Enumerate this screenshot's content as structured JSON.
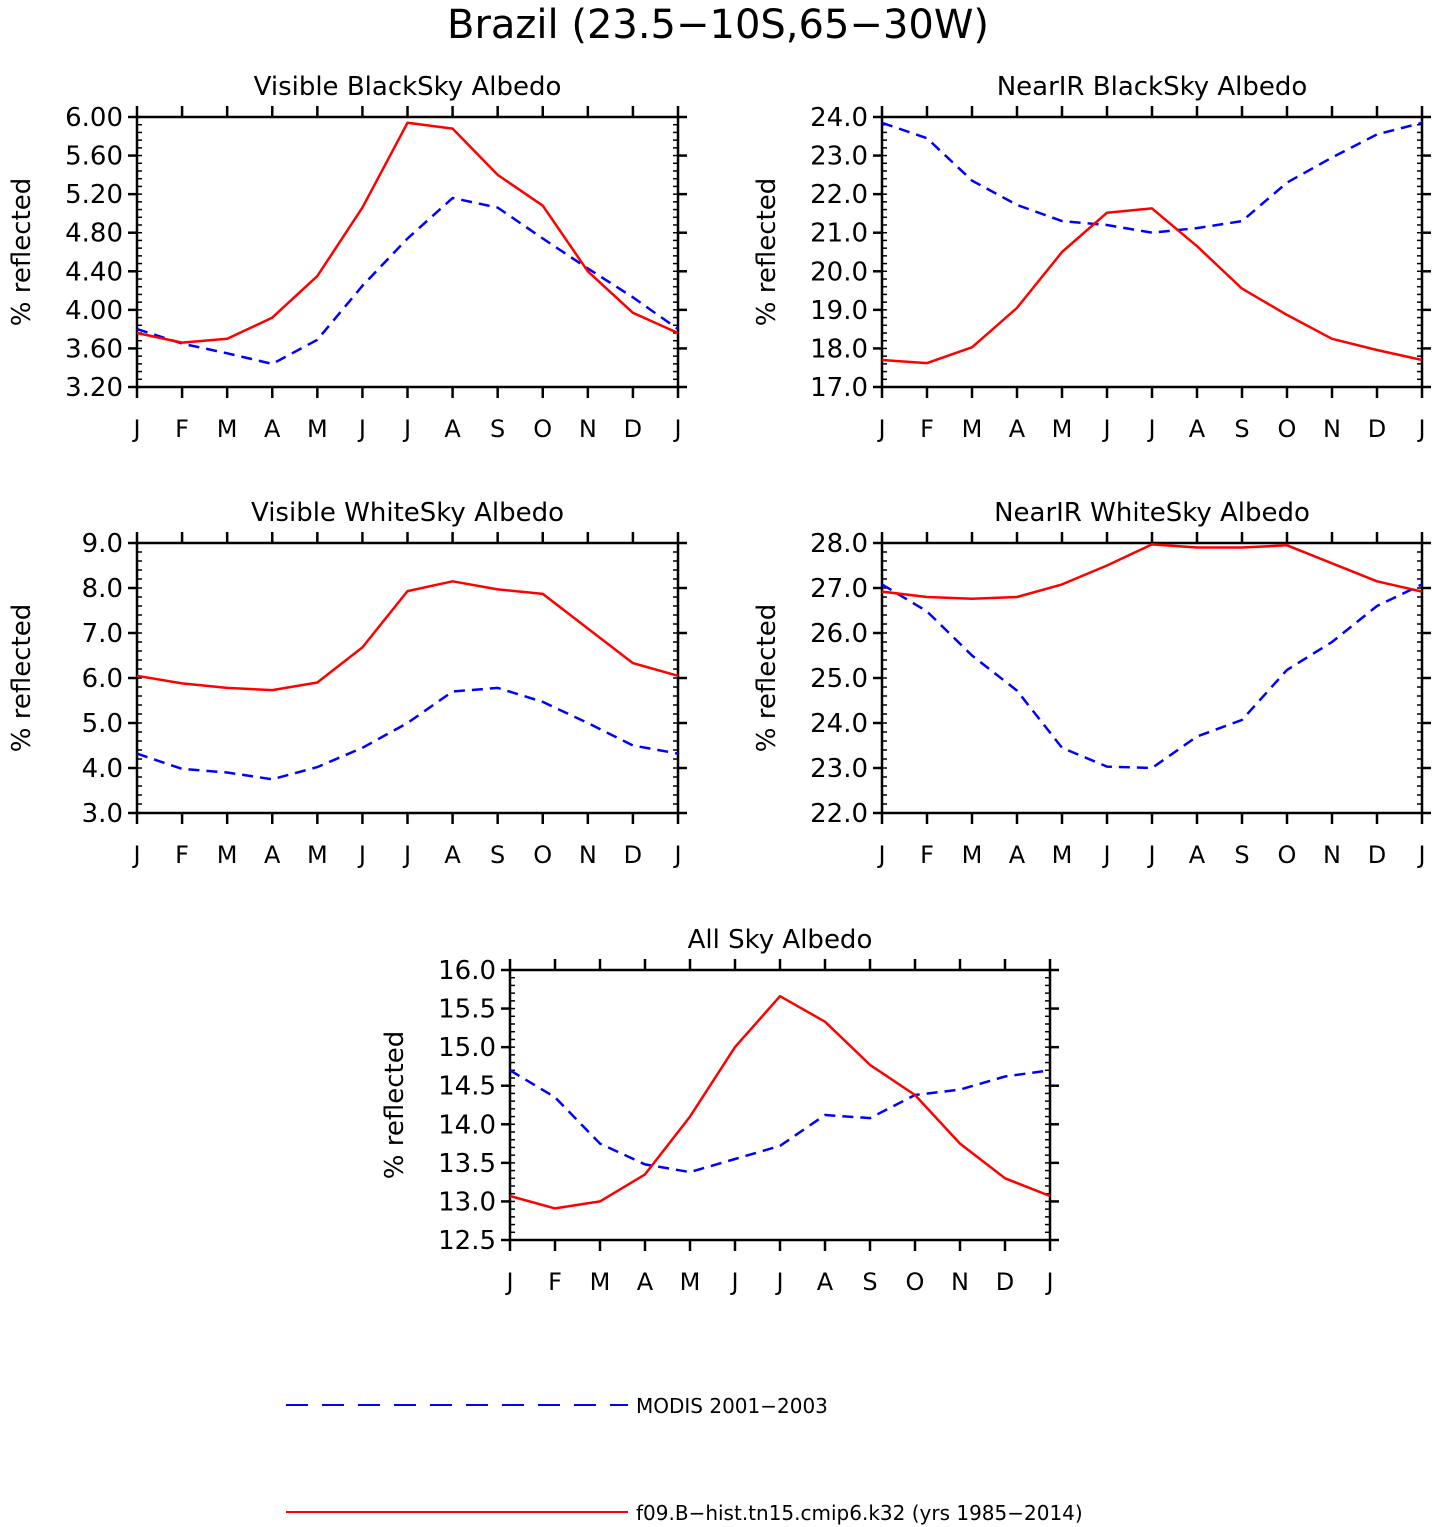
{
  "title": "Brazil (23.5−10S,65−30W)",
  "months": [
    "J",
    "F",
    "M",
    "A",
    "M",
    "J",
    "J",
    "A",
    "S",
    "O",
    "N",
    "D",
    "J"
  ],
  "legend": {
    "modis": "MODIS 2001−2003",
    "model": "f09.B−hist.tn15.cmip6.k32 (yrs 1985−2014)"
  },
  "colors": {
    "modis": "#0000ff",
    "model": "#ff0000",
    "axes": "#000000"
  },
  "chart_data": [
    {
      "type": "line",
      "title": "Visible BlackSky Albedo",
      "ylabel": "% reflected",
      "ylim": [
        3.2,
        6.0
      ],
      "yticks": [
        3.2,
        3.6,
        4.0,
        4.4,
        4.8,
        5.2,
        5.6,
        6.0
      ],
      "ytick_labels": [
        "3.20",
        "3.60",
        "4.00",
        "4.40",
        "4.80",
        "5.20",
        "5.60",
        "6.00"
      ],
      "categories": [
        "J",
        "F",
        "M",
        "A",
        "M",
        "J",
        "J",
        "A",
        "S",
        "O",
        "N",
        "D",
        "J"
      ],
      "series": [
        {
          "name": "MODIS 2001−2003",
          "style": "dashed",
          "values": [
            3.8,
            3.65,
            3.55,
            3.44,
            3.69,
            4.25,
            4.74,
            5.16,
            5.06,
            4.74,
            4.43,
            4.13,
            3.8
          ]
        },
        {
          "name": "f09.B−hist.tn15.cmip6.k32 (yrs 1985−2014)",
          "style": "solid",
          "values": [
            3.76,
            3.66,
            3.7,
            3.92,
            4.35,
            5.06,
            5.94,
            5.88,
            5.4,
            5.08,
            4.4,
            3.97,
            3.76
          ]
        }
      ]
    },
    {
      "type": "line",
      "title": "NearIR BlackSky Albedo",
      "ylabel": "% reflected",
      "ylim": [
        17.0,
        24.0
      ],
      "yticks": [
        17,
        18,
        19,
        20,
        21,
        22,
        23,
        24
      ],
      "ytick_labels": [
        "17.0",
        "18.0",
        "19.0",
        "20.0",
        "21.0",
        "22.0",
        "23.0",
        "24.0"
      ],
      "categories": [
        "J",
        "F",
        "M",
        "A",
        "M",
        "J",
        "J",
        "A",
        "S",
        "O",
        "N",
        "D",
        "J"
      ],
      "series": [
        {
          "name": "MODIS 2001−2003",
          "style": "dashed",
          "values": [
            23.85,
            23.45,
            22.35,
            21.72,
            21.3,
            21.2,
            21.0,
            21.12,
            21.3,
            22.3,
            22.95,
            23.55,
            23.85
          ]
        },
        {
          "name": "f09.B−hist.tn15.cmip6.k32 (yrs 1985−2014)",
          "style": "solid",
          "values": [
            17.7,
            17.62,
            18.03,
            19.05,
            20.5,
            21.52,
            21.63,
            20.65,
            19.55,
            18.87,
            18.25,
            17.96,
            17.7
          ]
        }
      ]
    },
    {
      "type": "line",
      "title": "Visible WhiteSky Albedo",
      "ylabel": "% reflected",
      "ylim": [
        3.0,
        9.0
      ],
      "yticks": [
        3,
        4,
        5,
        6,
        7,
        8,
        9
      ],
      "ytick_labels": [
        "3.0",
        "4.0",
        "5.0",
        "6.0",
        "7.0",
        "8.0",
        "9.0"
      ],
      "categories": [
        "J",
        "F",
        "M",
        "A",
        "M",
        "J",
        "J",
        "A",
        "S",
        "O",
        "N",
        "D",
        "J"
      ],
      "series": [
        {
          "name": "MODIS 2001−2003",
          "style": "dashed",
          "values": [
            4.32,
            3.98,
            3.9,
            3.75,
            4.02,
            4.45,
            5.0,
            5.7,
            5.78,
            5.47,
            5.0,
            4.5,
            4.32
          ]
        },
        {
          "name": "f09.B−hist.tn15.cmip6.k32 (yrs 1985−2014)",
          "style": "solid",
          "values": [
            6.05,
            5.88,
            5.78,
            5.73,
            5.9,
            6.68,
            7.93,
            8.15,
            7.97,
            7.87,
            7.1,
            6.33,
            6.05
          ]
        }
      ]
    },
    {
      "type": "line",
      "title": "NearIR WhiteSky Albedo",
      "ylabel": "% reflected",
      "ylim": [
        22.0,
        28.0
      ],
      "yticks": [
        22,
        23,
        24,
        25,
        26,
        27,
        28
      ],
      "ytick_labels": [
        "22.0",
        "23.0",
        "24.0",
        "25.0",
        "26.0",
        "27.0",
        "28.0"
      ],
      "categories": [
        "J",
        "F",
        "M",
        "A",
        "M",
        "J",
        "J",
        "A",
        "S",
        "O",
        "N",
        "D",
        "J"
      ],
      "series": [
        {
          "name": "MODIS 2001−2003",
          "style": "dashed",
          "values": [
            27.08,
            26.48,
            25.5,
            24.72,
            23.45,
            23.03,
            23.0,
            23.7,
            24.07,
            25.18,
            25.8,
            26.6,
            27.08
          ]
        },
        {
          "name": "f09.B−hist.tn15.cmip6.k32 (yrs 1985−2014)",
          "style": "solid",
          "values": [
            26.92,
            26.8,
            26.76,
            26.8,
            27.08,
            27.5,
            27.97,
            27.9,
            27.9,
            27.95,
            27.55,
            27.15,
            26.92
          ]
        }
      ]
    },
    {
      "type": "line",
      "title": "All Sky Albedo",
      "ylabel": "% reflected",
      "ylim": [
        12.5,
        16.0
      ],
      "yticks": [
        12.5,
        13.0,
        13.5,
        14.0,
        14.5,
        15.0,
        15.5,
        16.0
      ],
      "ytick_labels": [
        "12.5",
        "13.0",
        "13.5",
        "14.0",
        "14.5",
        "15.0",
        "15.5",
        "16.0"
      ],
      "categories": [
        "J",
        "F",
        "M",
        "A",
        "M",
        "J",
        "J",
        "A",
        "S",
        "O",
        "N",
        "D",
        "J"
      ],
      "series": [
        {
          "name": "MODIS 2001−2003",
          "style": "dashed",
          "values": [
            14.7,
            14.35,
            13.75,
            13.48,
            13.38,
            13.55,
            13.72,
            14.12,
            14.08,
            14.38,
            14.45,
            14.62,
            14.7
          ]
        },
        {
          "name": "f09.B−hist.tn15.cmip6.k32 (yrs 1985−2014)",
          "style": "solid",
          "values": [
            13.07,
            12.91,
            13.0,
            13.35,
            14.1,
            15.0,
            15.66,
            15.33,
            14.77,
            14.38,
            13.75,
            13.3,
            13.07
          ]
        }
      ]
    }
  ]
}
